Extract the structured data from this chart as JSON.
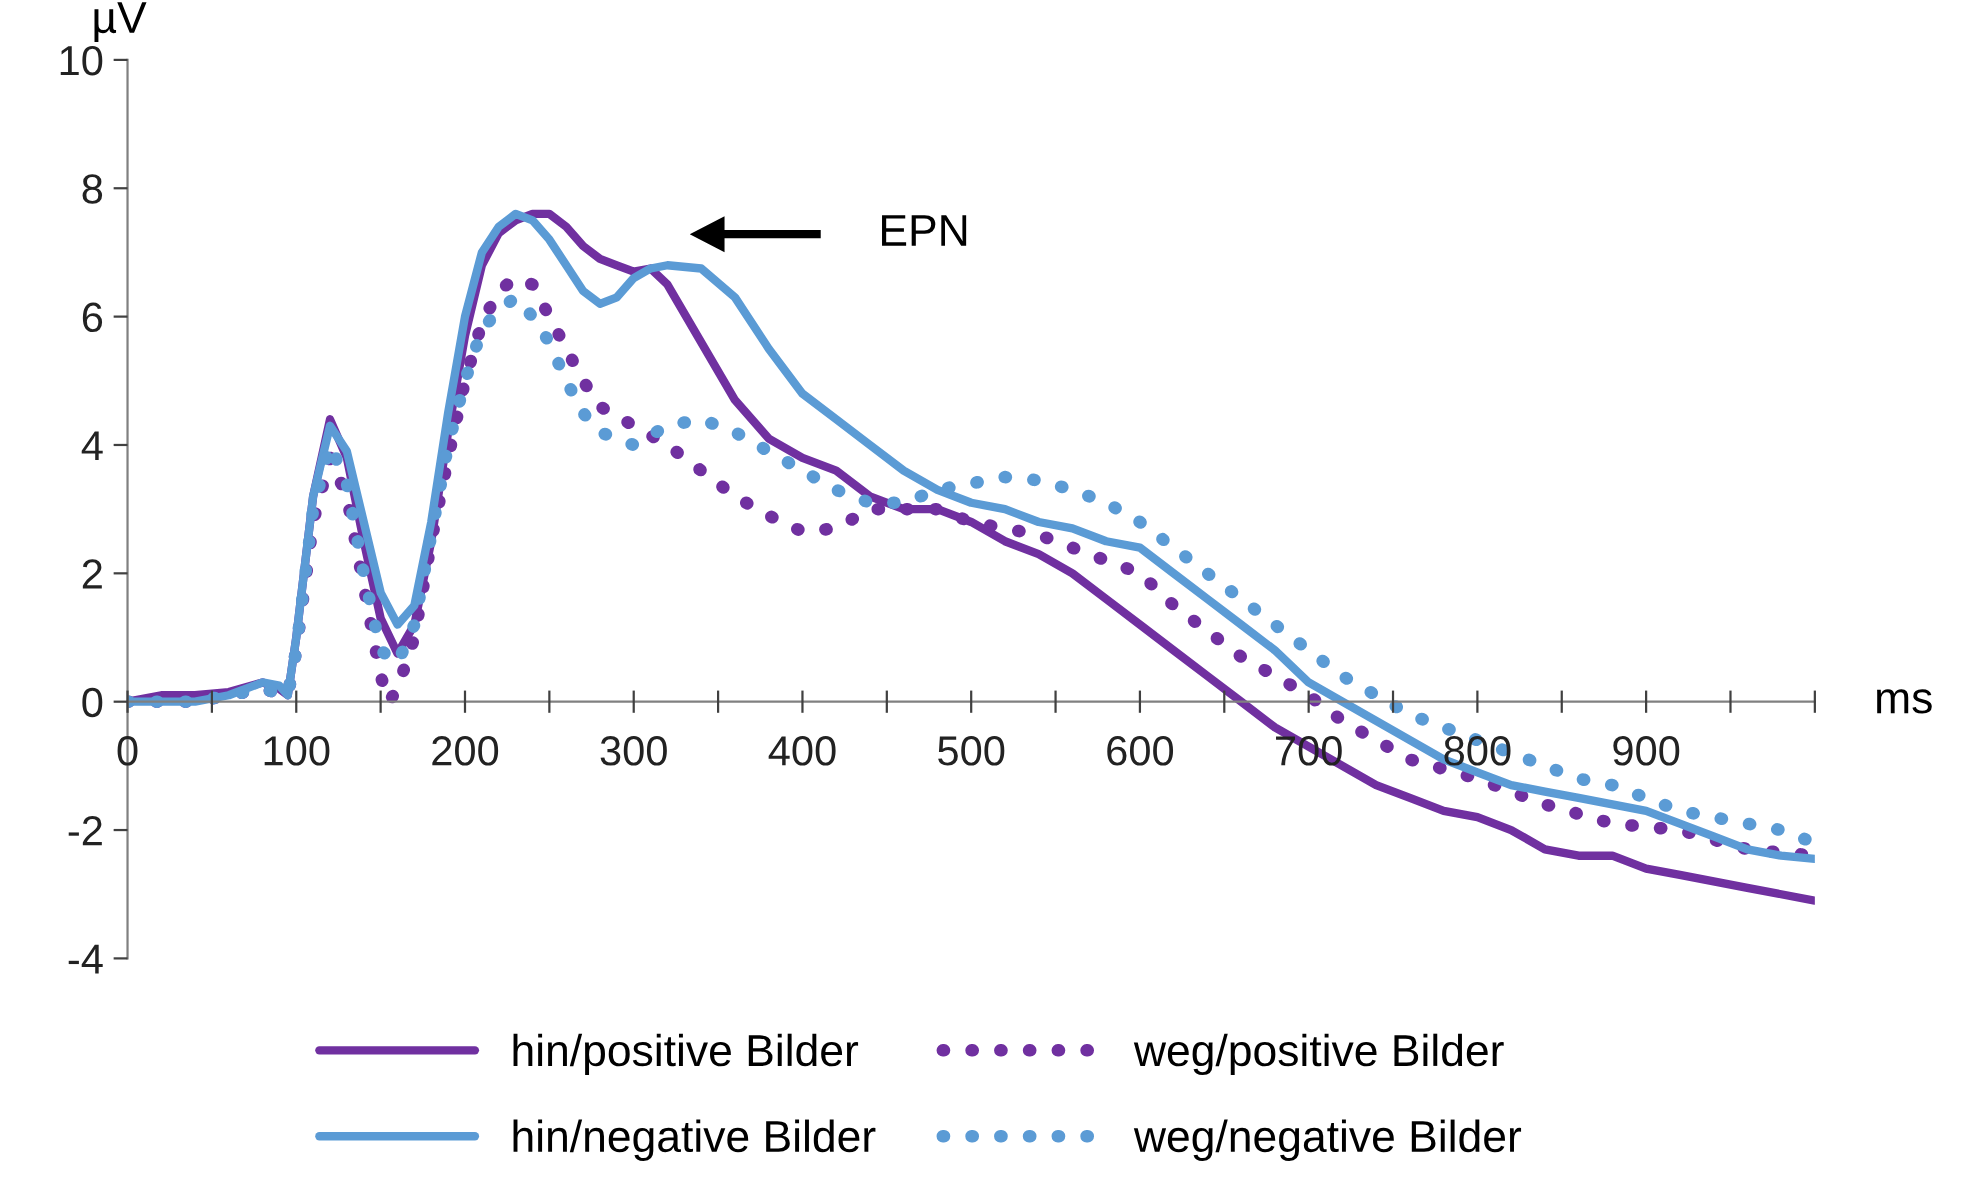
{
  "chart_data": {
    "type": "line",
    "xlabel": "ms",
    "ylabel": "µV",
    "xlim": [
      0,
      1000
    ],
    "ylim": [
      -4,
      10
    ],
    "xticks": [
      0,
      {
        "value": 50,
        "label": null
      },
      100,
      {
        "value": 150,
        "label": null
      },
      200,
      {
        "value": 250,
        "label": null
      },
      300,
      {
        "value": 350,
        "label": null
      },
      400,
      {
        "value": 450,
        "label": null
      },
      500,
      {
        "value": 550,
        "label": null
      },
      600,
      {
        "value": 650,
        "label": null
      },
      700,
      {
        "value": 750,
        "label": null
      },
      800,
      {
        "value": 850,
        "label": null
      },
      900,
      {
        "value": 950,
        "label": null
      },
      {
        "value": 1000,
        "label": null
      }
    ],
    "yticks": [
      -4,
      -2,
      0,
      2,
      4,
      6,
      8,
      10
    ],
    "grid": false,
    "legend": "bottom",
    "marker": "none",
    "annotations": [
      "EPN"
    ],
    "series": [
      {
        "name": "hin/positive Bilder",
        "color": "#7030a0",
        "line_style": "solid",
        "x": [
          0,
          20,
          40,
          60,
          80,
          90,
          95,
          100,
          110,
          120,
          130,
          140,
          150,
          160,
          170,
          180,
          190,
          200,
          210,
          220,
          230,
          240,
          250,
          260,
          270,
          280,
          290,
          300,
          310,
          320,
          340,
          360,
          380,
          400,
          420,
          440,
          460,
          480,
          500,
          520,
          540,
          560,
          580,
          600,
          620,
          640,
          660,
          680,
          700,
          720,
          740,
          760,
          780,
          800,
          820,
          840,
          860,
          880,
          900,
          920,
          940,
          960,
          980,
          1000
        ],
        "values": [
          0,
          0.1,
          0.1,
          0.15,
          0.3,
          0.2,
          0.1,
          1.0,
          3.2,
          4.4,
          3.8,
          2.5,
          1.3,
          0.75,
          1.2,
          2.5,
          4.2,
          5.7,
          6.8,
          7.3,
          7.5,
          7.6,
          7.6,
          7.4,
          7.1,
          6.9,
          6.8,
          6.7,
          6.75,
          6.5,
          5.6,
          4.7,
          4.1,
          3.8,
          3.6,
          3.2,
          3.0,
          3.0,
          2.8,
          2.5,
          2.3,
          2.0,
          1.6,
          1.2,
          0.8,
          0.4,
          0.0,
          -0.4,
          -0.7,
          -1.0,
          -1.3,
          -1.5,
          -1.7,
          -1.8,
          -2.0,
          -2.3,
          -2.4,
          -2.4,
          -2.6,
          -2.7,
          -2.8,
          -2.9,
          -3.0,
          -3.1
        ]
      },
      {
        "name": "weg/positive Bilder",
        "color": "#7030a0",
        "line_style": "dotted",
        "x": [
          0,
          40,
          80,
          95,
          100,
          110,
          120,
          130,
          140,
          150,
          155,
          160,
          170,
          180,
          190,
          200,
          210,
          220,
          230,
          240,
          250,
          260,
          270,
          280,
          300,
          320,
          340,
          360,
          380,
          400,
          420,
          440,
          460,
          480,
          500,
          520,
          540,
          560,
          580,
          600,
          620,
          640,
          660,
          680,
          700,
          720,
          740,
          760,
          800,
          840,
          880,
          920,
          960,
          1000
        ],
        "values": [
          0,
          0,
          0.2,
          0.1,
          0.8,
          2.8,
          3.8,
          3.2,
          1.8,
          0.4,
          0.0,
          0.2,
          1.0,
          2.5,
          3.8,
          5.0,
          5.9,
          6.4,
          6.6,
          6.5,
          6.0,
          5.5,
          5.0,
          4.6,
          4.3,
          4.0,
          3.6,
          3.2,
          2.9,
          2.65,
          2.7,
          3.0,
          3.0,
          3.0,
          2.8,
          2.7,
          2.6,
          2.4,
          2.2,
          2.0,
          1.5,
          1.1,
          0.7,
          0.4,
          0.1,
          -0.3,
          -0.6,
          -0.9,
          -1.2,
          -1.6,
          -1.9,
          -2.0,
          -2.3,
          -2.4
        ]
      },
      {
        "name": "hin/negative Bilder",
        "color": "#5b9bd5",
        "line_style": "solid",
        "x": [
          0,
          40,
          60,
          80,
          90,
          95,
          100,
          110,
          120,
          130,
          140,
          150,
          160,
          170,
          180,
          190,
          200,
          210,
          220,
          230,
          240,
          250,
          260,
          270,
          280,
          290,
          300,
          310,
          320,
          340,
          360,
          380,
          400,
          420,
          440,
          460,
          480,
          500,
          520,
          540,
          560,
          580,
          600,
          620,
          640,
          660,
          680,
          700,
          720,
          740,
          760,
          780,
          800,
          820,
          840,
          860,
          880,
          900,
          920,
          940,
          960,
          980,
          1000
        ],
        "values": [
          0,
          0,
          0.1,
          0.3,
          0.25,
          0.1,
          1.0,
          3.2,
          4.3,
          3.9,
          2.8,
          1.7,
          1.2,
          1.5,
          2.8,
          4.5,
          6.0,
          7.0,
          7.4,
          7.6,
          7.5,
          7.2,
          6.8,
          6.4,
          6.2,
          6.3,
          6.6,
          6.75,
          6.8,
          6.75,
          6.3,
          5.5,
          4.8,
          4.4,
          4.0,
          3.6,
          3.3,
          3.1,
          3.0,
          2.8,
          2.7,
          2.5,
          2.4,
          2.0,
          1.6,
          1.2,
          0.8,
          0.3,
          0.0,
          -0.3,
          -0.6,
          -0.9,
          -1.1,
          -1.3,
          -1.4,
          -1.5,
          -1.6,
          -1.7,
          -1.9,
          -2.1,
          -2.3,
          -2.4,
          -2.45
        ]
      },
      {
        "name": "weg/negative Bilder",
        "color": "#5b9bd5",
        "line_style": "dotted",
        "x": [
          0,
          40,
          80,
          95,
          100,
          110,
          120,
          130,
          140,
          150,
          160,
          170,
          180,
          190,
          200,
          210,
          220,
          230,
          240,
          250,
          260,
          270,
          280,
          300,
          320,
          340,
          360,
          380,
          400,
          420,
          440,
          460,
          480,
          500,
          520,
          540,
          560,
          580,
          600,
          620,
          640,
          660,
          680,
          700,
          720,
          740,
          760,
          780,
          800,
          820,
          840,
          860,
          880,
          900,
          920,
          940,
          960,
          980,
          1000
        ],
        "values": [
          0,
          0,
          0.2,
          0.1,
          0.8,
          3.0,
          4.0,
          3.4,
          2.0,
          0.8,
          0.6,
          1.2,
          2.6,
          4.0,
          5.0,
          5.8,
          6.1,
          6.3,
          6.0,
          5.6,
          5.0,
          4.5,
          4.2,
          4.0,
          4.3,
          4.4,
          4.2,
          3.9,
          3.6,
          3.3,
          3.1,
          3.1,
          3.3,
          3.4,
          3.5,
          3.45,
          3.3,
          3.1,
          2.8,
          2.4,
          2.0,
          1.6,
          1.2,
          0.8,
          0.4,
          0.1,
          -0.2,
          -0.4,
          -0.6,
          -0.8,
          -1.0,
          -1.2,
          -1.3,
          -1.5,
          -1.7,
          -1.8,
          -1.9,
          -2.0,
          -2.2
        ]
      }
    ]
  }
}
